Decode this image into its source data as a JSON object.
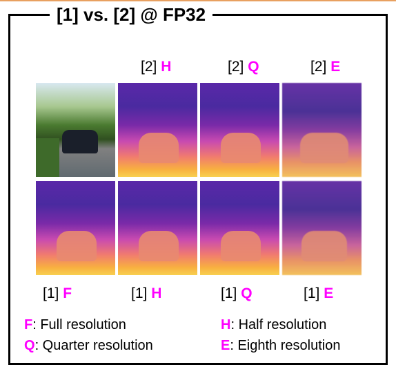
{
  "title": "[1] vs. [2] @ FP32",
  "column_headers": [
    {
      "prefix": "[2]",
      "letter": "H"
    },
    {
      "prefix": "[2]",
      "letter": "Q"
    },
    {
      "prefix": "[2]",
      "letter": "E"
    }
  ],
  "row_labels": [
    {
      "prefix": "[1]",
      "letter": "F"
    },
    {
      "prefix": "[1]",
      "letter": "H"
    },
    {
      "prefix": "[1]",
      "letter": "Q"
    },
    {
      "prefix": "[1]",
      "letter": "E"
    }
  ],
  "legend": [
    {
      "letter": "F",
      "text": ": Full resolution"
    },
    {
      "letter": "H",
      "text": ": Half resolution"
    },
    {
      "letter": "Q",
      "text": ": Quarter resolution"
    },
    {
      "letter": "E",
      "text": ": Eighth resolution"
    }
  ]
}
